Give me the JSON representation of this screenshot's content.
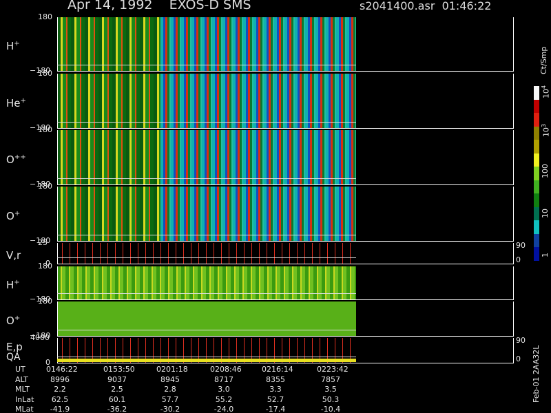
{
  "header": {
    "title": "Apr 14, 1992    EXOS-D SMS",
    "file": "s2041400.asr  01:46:22"
  },
  "panels": [
    {
      "label": "H",
      "sup": "+",
      "top": "180",
      "bottom": "−180"
    },
    {
      "label": "He",
      "sup": "+",
      "top": "180",
      "bottom": "−180"
    },
    {
      "label": "O",
      "sup": "++",
      "top": "180",
      "bottom": "−180"
    },
    {
      "label": "O",
      "sup": "+",
      "top": "180",
      "bottom": "−180"
    },
    {
      "label": "V,r",
      "top": "25",
      "bottom": "0",
      "right_top": "90",
      "right_bottom": "0"
    },
    {
      "label": "H",
      "sup": "+",
      "top": "180",
      "bottom": "−180"
    },
    {
      "label": "O",
      "sup": "+",
      "top": "180",
      "bottom": "−180"
    },
    {
      "label": "E,p",
      "label2": "QA",
      "top": "4000",
      "bottom": "0",
      "right_top": "90",
      "right_bottom": "0"
    }
  ],
  "colorbar": {
    "unit": "Ct/Smp",
    "labels": [
      {
        "base": "10",
        "exp": "4"
      },
      {
        "base": "10",
        "exp": "3"
      },
      {
        "base": "100"
      },
      {
        "base": "10"
      },
      {
        "base": "1"
      }
    ]
  },
  "footer": {
    "rows": [
      {
        "label": "UT",
        "values": [
          "0146:22",
          "0153:50",
          "0201:18",
          "0208:46",
          "0216:14",
          "0223:42"
        ]
      },
      {
        "label": "ALT",
        "values": [
          "8996",
          "9037",
          "8945",
          "8717",
          "8355",
          "7857"
        ]
      },
      {
        "label": "MLT",
        "values": [
          "2.2",
          "2.5",
          "2.8",
          "3.0",
          "3.3",
          "3.5"
        ]
      },
      {
        "label": "InLat",
        "values": [
          "62.5",
          "60.1",
          "57.7",
          "55.2",
          "52.7",
          "50.3"
        ]
      },
      {
        "label": "MLat",
        "values": [
          "-41.9",
          "-36.2",
          "-30.2",
          "-24.0",
          "-17.4",
          "-10.4"
        ]
      }
    ]
  },
  "stamp": "Feb-01 2AA32L"
}
